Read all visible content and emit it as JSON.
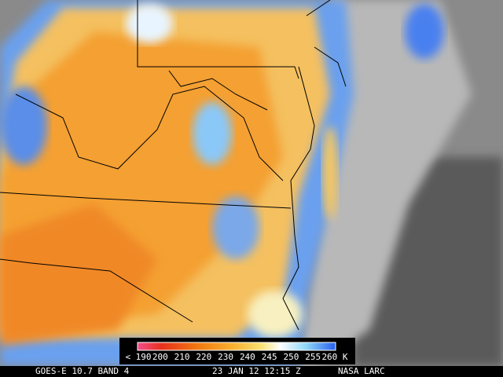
{
  "colorbar": {
    "labels": [
      "< 190",
      "200",
      "210",
      "220",
      "230",
      "240",
      "245",
      "250",
      "255",
      "260 K"
    ]
  },
  "caption": {
    "satellite": "GOES-E 10.7 BAND 4",
    "time": "23 JAN 12 12:15 Z",
    "source": "NASA LARC"
  }
}
